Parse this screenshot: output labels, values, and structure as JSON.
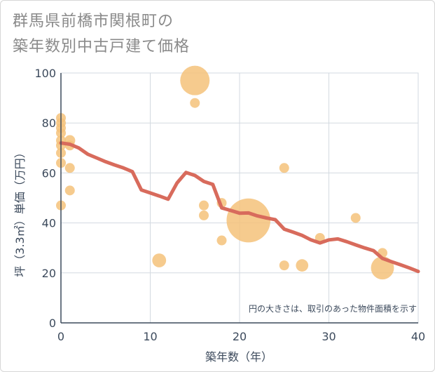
{
  "title_line1": "群馬県前橋市関根町の",
  "title_line2": "築年数別中古戸建て価格",
  "chart_data": {
    "type": "scatter",
    "xlabel": "築年数（年）",
    "ylabel": "坪（3.3㎡）単価（万円）",
    "xlim": [
      0,
      40
    ],
    "ylim": [
      0,
      100
    ],
    "xticks": [
      0,
      10,
      20,
      30,
      40
    ],
    "yticks": [
      0,
      20,
      40,
      60,
      80,
      100
    ],
    "grid": true,
    "note": "円の大きさは、取引のあった物件面積を示す",
    "bubble_color": "#f5c27a",
    "line_color": "#d86b5c",
    "points": [
      {
        "x": 0,
        "y": 82,
        "size": 1
      },
      {
        "x": 0,
        "y": 80,
        "size": 1
      },
      {
        "x": 0,
        "y": 78,
        "size": 1
      },
      {
        "x": 0,
        "y": 76,
        "size": 1
      },
      {
        "x": 0,
        "y": 73,
        "size": 1
      },
      {
        "x": 0,
        "y": 71,
        "size": 1
      },
      {
        "x": 0,
        "y": 68,
        "size": 1
      },
      {
        "x": 0,
        "y": 64,
        "size": 1
      },
      {
        "x": 0,
        "y": 47,
        "size": 1
      },
      {
        "x": 1,
        "y": 73,
        "size": 1.2
      },
      {
        "x": 1,
        "y": 71,
        "size": 1
      },
      {
        "x": 1,
        "y": 62,
        "size": 1
      },
      {
        "x": 1,
        "y": 53,
        "size": 1
      },
      {
        "x": 11,
        "y": 25,
        "size": 2
      },
      {
        "x": 15,
        "y": 97,
        "size": 9
      },
      {
        "x": 15,
        "y": 88,
        "size": 1
      },
      {
        "x": 16,
        "y": 47,
        "size": 1
      },
      {
        "x": 16,
        "y": 43,
        "size": 1
      },
      {
        "x": 18,
        "y": 48,
        "size": 1
      },
      {
        "x": 18,
        "y": 33,
        "size": 1
      },
      {
        "x": 21,
        "y": 41,
        "size": 20
      },
      {
        "x": 25,
        "y": 62,
        "size": 1
      },
      {
        "x": 25,
        "y": 23,
        "size": 1
      },
      {
        "x": 27,
        "y": 23,
        "size": 1.6
      },
      {
        "x": 29,
        "y": 34,
        "size": 1
      },
      {
        "x": 33,
        "y": 42,
        "size": 1
      },
      {
        "x": 36,
        "y": 28,
        "size": 1
      },
      {
        "x": 36,
        "y": 22,
        "size": 5.5
      }
    ],
    "trend": [
      [
        0,
        72
      ],
      [
        1,
        71.5
      ],
      [
        2,
        70
      ],
      [
        3,
        67.5
      ],
      [
        4,
        66
      ],
      [
        5,
        64.5
      ],
      [
        6,
        63.2
      ],
      [
        7,
        62
      ],
      [
        8,
        60.5
      ],
      [
        9,
        53.2
      ],
      [
        10,
        52
      ],
      [
        11,
        50.8
      ],
      [
        12,
        49.5
      ],
      [
        13,
        56
      ],
      [
        14,
        60.2
      ],
      [
        15,
        59
      ],
      [
        16,
        56.6
      ],
      [
        17,
        55.4
      ],
      [
        18,
        46
      ],
      [
        19,
        45
      ],
      [
        20,
        43.9
      ],
      [
        21,
        44
      ],
      [
        22,
        42.8
      ],
      [
        23,
        42
      ],
      [
        24,
        41.3
      ],
      [
        25,
        37.5
      ],
      [
        26,
        36.3
      ],
      [
        27,
        35
      ],
      [
        28,
        33.2
      ],
      [
        29,
        32
      ],
      [
        30,
        33.2
      ],
      [
        31,
        33.6
      ],
      [
        32,
        32.5
      ],
      [
        33,
        31.2
      ],
      [
        34,
        30
      ],
      [
        35,
        28.9
      ],
      [
        36,
        25.8
      ],
      [
        37,
        24.5
      ],
      [
        38,
        23.3
      ],
      [
        39,
        22
      ],
      [
        40,
        20.6
      ]
    ]
  }
}
